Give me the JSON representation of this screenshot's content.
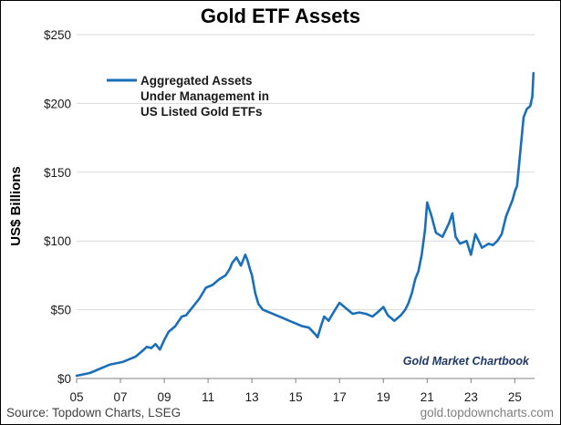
{
  "chart_data": {
    "type": "line",
    "title": "Gold ETF Assets",
    "ylabel": "US$ Billions",
    "xlabel": "",
    "ylim": [
      0,
      250
    ],
    "xlim": [
      2005,
      2025.9
    ],
    "y_ticks": [
      0,
      50,
      100,
      150,
      200,
      250
    ],
    "y_tick_labels": [
      "$0",
      "$50",
      "$100",
      "$150",
      "$200",
      "$250"
    ],
    "x_ticks": [
      2005,
      2007,
      2009,
      2011,
      2013,
      2015,
      2017,
      2019,
      2021,
      2023,
      2025
    ],
    "x_tick_labels": [
      "05",
      "07",
      "09",
      "11",
      "13",
      "15",
      "17",
      "19",
      "21",
      "23",
      "25"
    ],
    "grid": "horizontal",
    "legend_position": "top-left",
    "series": [
      {
        "name": "Aggregated Assets Under Management in US Listed Gold ETFs",
        "legend_lines": [
          "Aggregated Assets",
          "Under Management in",
          "US Listed Gold ETFs"
        ],
        "color": "#1a6fb8",
        "x": [
          2005.0,
          2005.3,
          2005.6,
          2005.9,
          2006.2,
          2006.5,
          2006.8,
          2007.1,
          2007.4,
          2007.7,
          2008.0,
          2008.2,
          2008.4,
          2008.6,
          2008.8,
          2009.0,
          2009.2,
          2009.5,
          2009.8,
          2010.0,
          2010.3,
          2010.6,
          2010.9,
          2011.2,
          2011.5,
          2011.8,
          2012.0,
          2012.1,
          2012.3,
          2012.5,
          2012.7,
          2012.8,
          2012.9,
          2013.0,
          2013.15,
          2013.3,
          2013.5,
          2013.8,
          2014.1,
          2014.4,
          2014.7,
          2015.0,
          2015.3,
          2015.6,
          2015.9,
          2016.0,
          2016.15,
          2016.3,
          2016.5,
          2016.8,
          2017.0,
          2017.3,
          2017.6,
          2017.9,
          2018.2,
          2018.5,
          2018.8,
          2019.0,
          2019.2,
          2019.5,
          2019.8,
          2020.0,
          2020.15,
          2020.3,
          2020.45,
          2020.6,
          2020.75,
          2020.9,
          2021.0,
          2021.2,
          2021.4,
          2021.7,
          2022.0,
          2022.15,
          2022.3,
          2022.5,
          2022.8,
          2023.0,
          2023.2,
          2023.5,
          2023.8,
          2024.0,
          2024.2,
          2024.4,
          2024.6,
          2024.8,
          2024.9,
          2025.0,
          2025.1,
          2025.25,
          2025.4,
          2025.55,
          2025.7,
          2025.8,
          2025.85
        ],
        "values": [
          2,
          3,
          4,
          6,
          8,
          10,
          11,
          12,
          14,
          16,
          20,
          23,
          22,
          25,
          21,
          28,
          34,
          38,
          45,
          46,
          52,
          58,
          66,
          68,
          72,
          75,
          80,
          84,
          88,
          82,
          90,
          86,
          80,
          75,
          62,
          54,
          50,
          48,
          46,
          44,
          42,
          40,
          38,
          37,
          32,
          30,
          38,
          45,
          42,
          50,
          55,
          51,
          47,
          48,
          47,
          45,
          49,
          52,
          46,
          42,
          46,
          50,
          55,
          62,
          72,
          78,
          90,
          108,
          128,
          118,
          106,
          103,
          113,
          120,
          103,
          98,
          100,
          90,
          105,
          95,
          98,
          97,
          100,
          105,
          118,
          126,
          130,
          136,
          140,
          165,
          190,
          196,
          198,
          205,
          222
        ]
      }
    ],
    "annotation": "Gold Market Chartbook"
  },
  "footer": {
    "source": "Source: Topdown Charts, LSEG",
    "website": "gold.topdowncharts.com"
  }
}
